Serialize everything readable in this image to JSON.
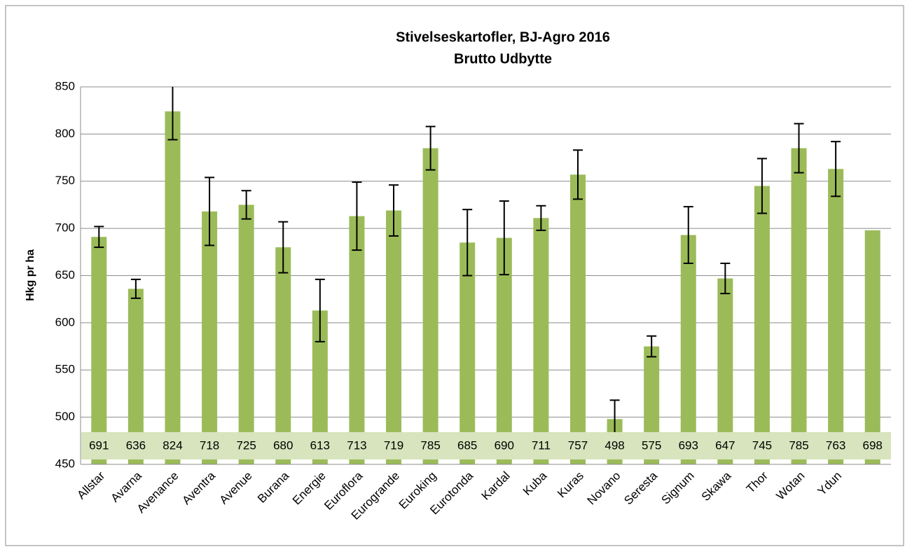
{
  "chart_data": {
    "type": "bar",
    "title": "Stivelseskartofler, BJ-Agro 2016",
    "subtitle": "Brutto Udbytte",
    "ylabel": "Hkg pr ha",
    "categories": [
      "Allstar",
      "Avarna",
      "Avenance",
      "Aventra",
      "Avenue",
      "Burana",
      "Energie",
      "Euroflora",
      "Eurogrande",
      "Euroking",
      "Eurotonda",
      "Kardal",
      "Kuba",
      "Kuras",
      "Novano",
      "Seresta",
      "Signum",
      "Skawa",
      "Thor",
      "Wotan",
      "Ydun",
      null
    ],
    "values": [
      691,
      636,
      824,
      718,
      725,
      680,
      613,
      713,
      719,
      785,
      685,
      690,
      711,
      757,
      498,
      575,
      693,
      647,
      745,
      785,
      763,
      698
    ],
    "errors": [
      11,
      10,
      30,
      36,
      15,
      27,
      33,
      36,
      27,
      23,
      35,
      39,
      13,
      26,
      20,
      11,
      30,
      16,
      29,
      26,
      29,
      null
    ],
    "color": "#9bbb59",
    "ylim": [
      450,
      850
    ],
    "yticks": [
      450,
      500,
      550,
      600,
      650,
      700,
      750,
      800,
      850
    ],
    "grid": true
  }
}
